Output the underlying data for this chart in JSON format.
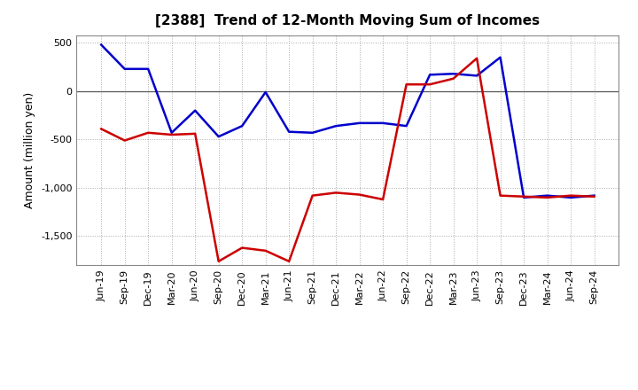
{
  "title": "[2388]  Trend of 12-Month Moving Sum of Incomes",
  "ylabel": "Amount (million yen)",
  "background_color": "#ffffff",
  "grid_color": "#aaaaaa",
  "x_labels": [
    "Jun-19",
    "Sep-19",
    "Dec-19",
    "Mar-20",
    "Jun-20",
    "Sep-20",
    "Dec-20",
    "Mar-21",
    "Jun-21",
    "Sep-21",
    "Dec-21",
    "Mar-22",
    "Jun-22",
    "Sep-22",
    "Dec-22",
    "Mar-23",
    "Jun-23",
    "Sep-23",
    "Dec-23",
    "Mar-24",
    "Jun-24",
    "Sep-24"
  ],
  "ordinary_income": [
    480,
    230,
    230,
    -430,
    -200,
    -470,
    -360,
    -10,
    -420,
    -430,
    -360,
    -330,
    -330,
    -360,
    170,
    180,
    160,
    350,
    -1100,
    -1080,
    -1100,
    -1080
  ],
  "net_income": [
    -390,
    -510,
    -430,
    -450,
    -440,
    -1760,
    -1620,
    -1650,
    -1760,
    -1080,
    -1050,
    -1070,
    -1120,
    70,
    70,
    130,
    340,
    -1080,
    -1090,
    -1100,
    -1080,
    -1090
  ],
  "ordinary_income_color": "#0000cc",
  "net_income_color": "#cc0000",
  "ylim": [
    -1800,
    580
  ],
  "yticks": [
    500,
    0,
    -500,
    -1000,
    -1500
  ]
}
